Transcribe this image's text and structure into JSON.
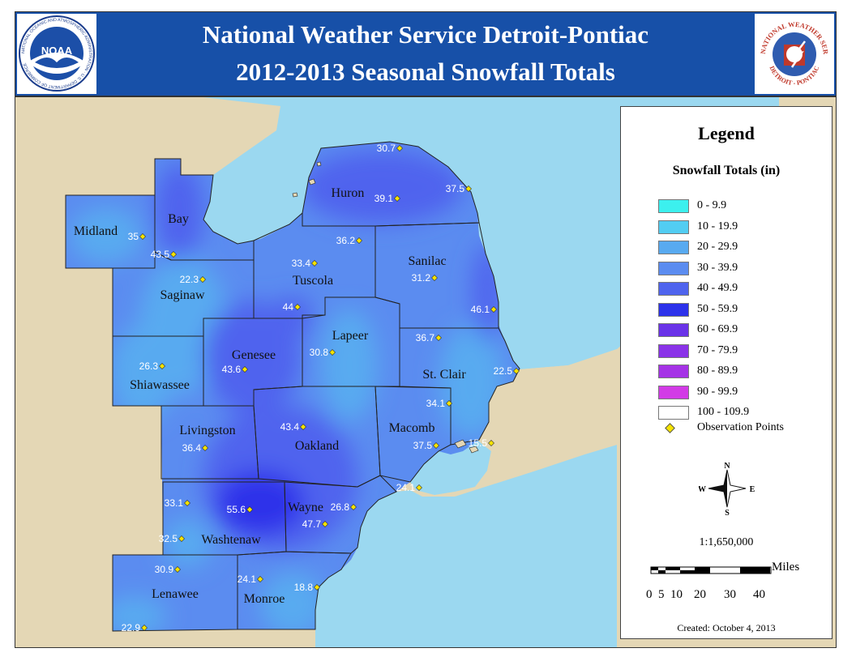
{
  "header": {
    "title_line1": "National Weather Service Detroit-Pontiac",
    "title_line2": "2012-2013 Seasonal Snowfall Totals",
    "noaa_logo": {
      "center_text": "NOAA",
      "ring_text": "NATIONAL OCEANIC AND ATMOSPHERIC ADMINISTRATION · U.S. DEPARTMENT OF COMMERCE"
    },
    "nws_logo": {
      "ring_top": "NATIONAL WEATHER SERVICE",
      "ring_bottom": "DETROIT - PONTIAC"
    }
  },
  "map": {
    "counties": [
      "Midland",
      "Bay",
      "Huron",
      "Saginaw",
      "Tuscola",
      "Sanilac",
      "Lapeer",
      "Genesee",
      "Shiawassee",
      "St. Clair",
      "Livingston",
      "Oakland",
      "Macomb",
      "Wayne",
      "Washtenaw",
      "Lenawee",
      "Monroe"
    ],
    "observations": [
      "30.7",
      "39.1",
      "37.5",
      "35",
      "43.5",
      "36.2",
      "33.4",
      "31.2",
      "22.3",
      "44",
      "46.1",
      "36.7",
      "30.8",
      "43.6",
      "26.3",
      "22.5",
      "34.1",
      "43.4",
      "36.4",
      "37.5",
      "15.5",
      "24.1",
      "33.1",
      "55.6",
      "26.8",
      "47.7",
      "32.5",
      "30.9",
      "24.1",
      "18.8",
      "22.9"
    ]
  },
  "legend": {
    "title": "Legend",
    "subtitle": "Snowfall Totals (in)",
    "classes": [
      {
        "label": "0 - 9.9",
        "color": "#3cf0ee"
      },
      {
        "label": "10 - 19.9",
        "color": "#52cdf2"
      },
      {
        "label": "20 - 29.9",
        "color": "#58aaf0"
      },
      {
        "label": "30 - 39.9",
        "color": "#5b8cf0"
      },
      {
        "label": "40 - 49.9",
        "color": "#4f64ee"
      },
      {
        "label": "50 - 59.9",
        "color": "#2d32ea"
      },
      {
        "label": "60 - 69.9",
        "color": "#6a33e8"
      },
      {
        "label": "70 - 79.9",
        "color": "#8a33e8"
      },
      {
        "label": "80 - 89.9",
        "color": "#a533e6"
      },
      {
        "label": "90 - 99.9",
        "color": "#d23be6"
      },
      {
        "label": "100 - 109.9",
        "color": "#ffffff"
      }
    ],
    "observation_label": "Observation Points",
    "compass": {
      "n": "N",
      "s": "S",
      "e": "E",
      "w": "W"
    },
    "scale_ratio": "1:1,650,000",
    "scale_unit": "Miles",
    "scale_ticks": [
      "0",
      "5",
      "10",
      "20",
      "30",
      "40"
    ],
    "created": "Created: October 4, 2013"
  },
  "colors": {
    "header_blue": "#1750a8",
    "land": "#e4d7b5",
    "water": "#9bd8f0",
    "obs_marker": "#f5e300"
  }
}
